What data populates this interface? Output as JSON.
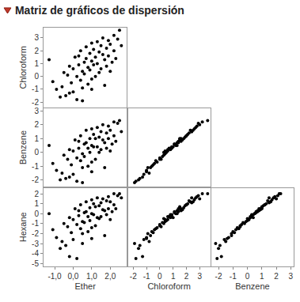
{
  "chart_data": {
    "type": "scatter_matrix",
    "title": "Matriz de gráficos de dispersión",
    "color": "#000000",
    "marker": "circle",
    "variables": [
      {
        "name": "Ether",
        "lim": [
          -1.6,
          2.9
        ],
        "ticks": [
          {
            "value": -1,
            "label": "-1,0"
          },
          {
            "value": 0,
            "label": "0,0"
          },
          {
            "value": 1,
            "label": "1,0"
          },
          {
            "value": 2,
            "label": "2,0"
          }
        ],
        "values": [
          -1.3,
          -1.1,
          -0.9,
          -0.6,
          -0.5,
          -0.4,
          -0.3,
          -0.2,
          -0.1,
          0.0,
          0.0,
          0.1,
          0.2,
          0.2,
          0.3,
          0.3,
          0.4,
          0.4,
          0.5,
          0.5,
          0.6,
          0.6,
          0.7,
          0.7,
          0.8,
          0.8,
          0.9,
          0.9,
          1.0,
          1.0,
          1.0,
          1.1,
          1.1,
          1.2,
          1.2,
          1.3,
          1.3,
          1.4,
          1.4,
          1.5,
          1.5,
          1.6,
          1.6,
          1.7,
          1.7,
          1.8,
          1.8,
          1.9,
          1.9,
          2.0,
          2.0,
          2.1,
          2.2,
          2.2,
          2.3,
          2.4,
          2.5,
          2.6,
          -0.7,
          -0.2,
          0.5,
          1.0
        ]
      },
      {
        "name": "Chloroform",
        "lim": [
          -2.4,
          3.8
        ],
        "ticks": [
          -2,
          -1,
          0,
          1,
          2,
          3
        ],
        "values": [
          1.3,
          -0.4,
          -1.0,
          -0.8,
          0.3,
          -1.5,
          0.1,
          0.8,
          -0.5,
          0.6,
          -1.2,
          1.5,
          0.0,
          -1.8,
          0.9,
          1.6,
          -0.3,
          2.0,
          0.4,
          -0.9,
          1.1,
          0.2,
          2.3,
          1.4,
          -0.6,
          0.7,
          1.8,
          0.5,
          2.6,
          1.2,
          -0.2,
          2.1,
          0.9,
          1.5,
          0.0,
          2.7,
          1.0,
          0.3,
          1.9,
          2.4,
          0.6,
          1.7,
          3.0,
          1.3,
          -0.7,
          2.2,
          0.8,
          2.8,
          1.6,
          0.4,
          2.5,
          1.1,
          3.2,
          2.0,
          1.4,
          2.9,
          3.6,
          2.4,
          -1.6,
          -1.3,
          -1.9,
          -1.0
        ]
      },
      {
        "name": "Benzene",
        "lim": [
          -2.5,
          3.2
        ],
        "ticks": [
          -2,
          -1,
          0,
          1,
          2,
          3
        ],
        "values": [
          0.5,
          -0.8,
          -1.3,
          -1.5,
          -0.2,
          -1.9,
          -0.5,
          0.2,
          -0.9,
          0.1,
          -1.6,
          0.9,
          -0.4,
          -2.1,
          0.3,
          0.8,
          -0.6,
          1.2,
          -0.1,
          -1.1,
          0.6,
          -0.3,
          1.6,
          0.7,
          -1.0,
          0.3,
          1.0,
          0.0,
          1.7,
          0.5,
          -0.7,
          1.3,
          0.4,
          1.0,
          -0.5,
          1.8,
          0.4,
          0.0,
          1.1,
          1.5,
          0.2,
          0.9,
          2.0,
          0.7,
          -1.1,
          1.4,
          0.3,
          1.9,
          1.0,
          0.1,
          1.6,
          0.6,
          2.2,
          1.2,
          0.8,
          2.1,
          2.3,
          1.5,
          -2.0,
          -1.8,
          -2.2,
          -1.4
        ]
      },
      {
        "name": "Hexane",
        "lim": [
          -5.3,
          2.6
        ],
        "ticks": [
          -5,
          -4,
          -3,
          -2,
          -1,
          0,
          1,
          2
        ],
        "values": [
          0.0,
          -1.6,
          -2.4,
          -2.8,
          -1.0,
          -3.2,
          -1.3,
          -0.4,
          -1.9,
          -0.6,
          -2.6,
          0.5,
          -1.1,
          -4.5,
          -0.2,
          0.3,
          -1.5,
          0.9,
          -0.8,
          -2.0,
          0.1,
          -0.9,
          1.2,
          0.2,
          -1.8,
          -0.3,
          0.6,
          -0.7,
          1.4,
          0.0,
          -1.4,
          1.0,
          -0.1,
          0.7,
          -1.2,
          1.6,
          -0.4,
          -0.5,
          0.8,
          1.1,
          -0.3,
          0.4,
          1.5,
          0.3,
          -2.2,
          1.3,
          -0.1,
          1.7,
          0.5,
          -0.6,
          1.2,
          0.2,
          2.0,
          0.9,
          0.5,
          1.8,
          2.0,
          1.6,
          -3.5,
          -4.3,
          -3.0,
          -2.5
        ]
      }
    ]
  }
}
